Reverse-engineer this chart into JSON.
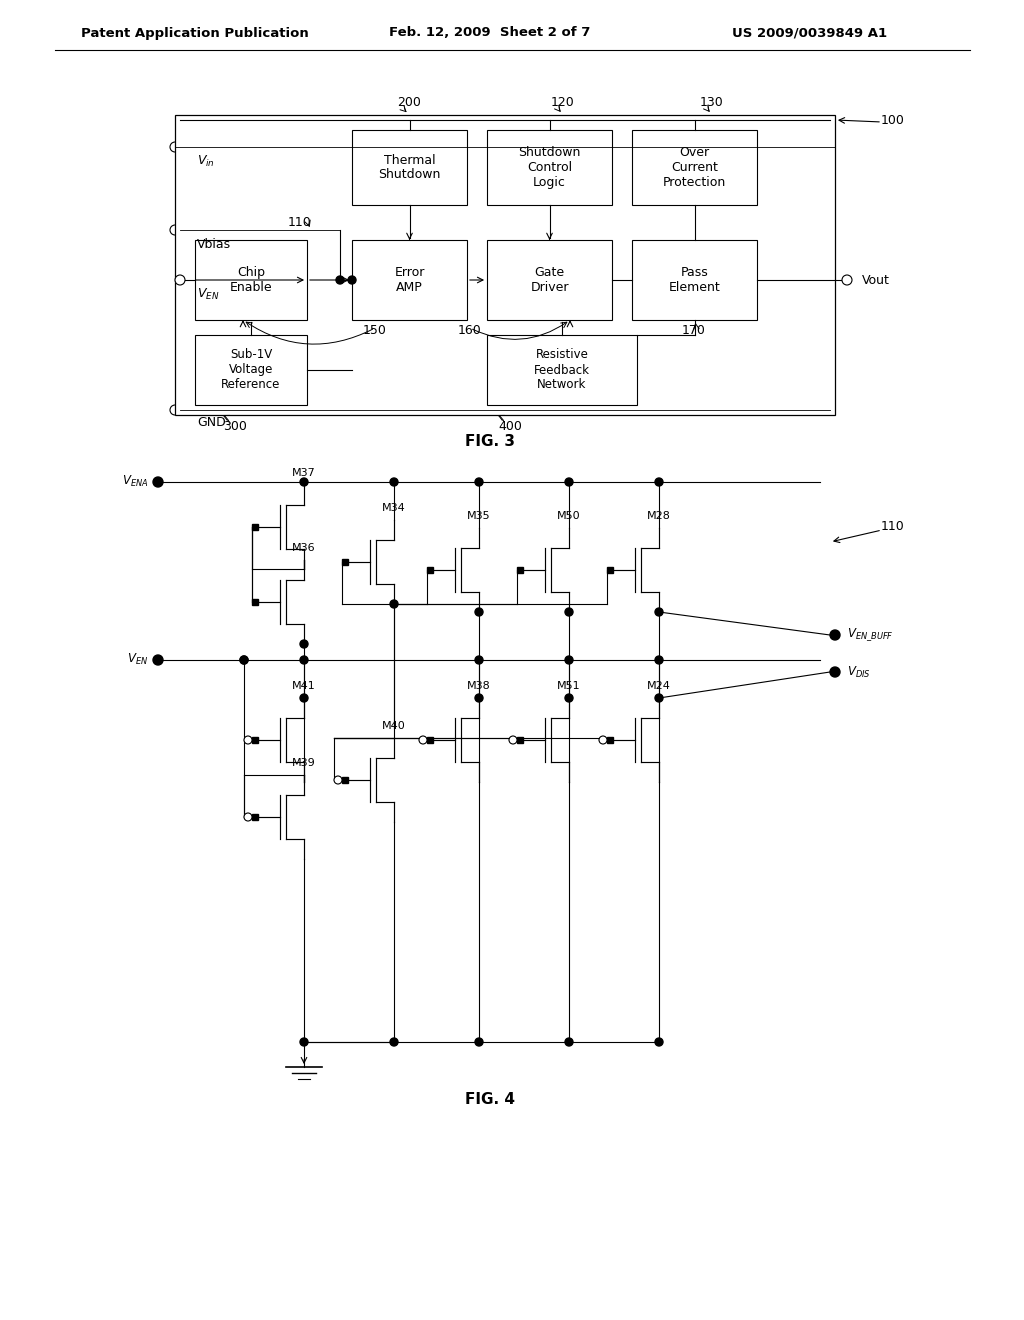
{
  "bg_color": "#ffffff",
  "text_color": "#000000",
  "line_color": "#000000",
  "header_left": "Patent Application Publication",
  "header_center": "Feb. 12, 2009  Sheet 2 of 7",
  "header_right": "US 2009/0039849 A1"
}
